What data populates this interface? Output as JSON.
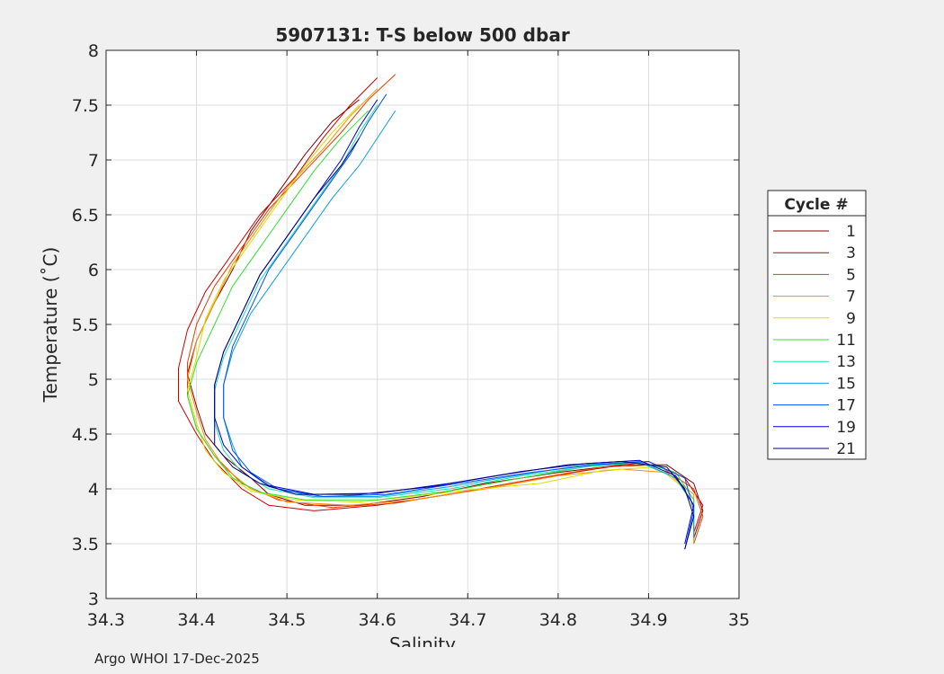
{
  "chart_data": {
    "type": "line",
    "title": "5907131: T-S below 500 dbar",
    "xlabel": "Salinity",
    "ylabel": "Temperature (˚C)",
    "xlim": [
      34.3,
      35.0
    ],
    "ylim": [
      3.0,
      8.0
    ],
    "xticks": [
      "34.3",
      "34.4",
      "34.5",
      "34.6",
      "34.7",
      "34.8",
      "34.9",
      "35"
    ],
    "yticks": [
      "3",
      "3.5",
      "4",
      "4.5",
      "5",
      "5.5",
      "6",
      "6.5",
      "7",
      "7.5",
      "8"
    ],
    "grid": true,
    "legend_title": "Cycle #",
    "legend_position": "right",
    "series": [
      {
        "name": "1",
        "color": "#800000",
        "points": [
          [
            34.58,
            7.55
          ],
          [
            34.55,
            7.35
          ],
          [
            34.52,
            7.05
          ],
          [
            34.49,
            6.7
          ],
          [
            34.46,
            6.35
          ],
          [
            34.44,
            6.0
          ],
          [
            34.42,
            5.7
          ],
          [
            34.4,
            5.35
          ],
          [
            34.39,
            5.05
          ],
          [
            34.4,
            4.75
          ],
          [
            34.41,
            4.5
          ],
          [
            34.43,
            4.3
          ],
          [
            34.46,
            4.1
          ],
          [
            34.48,
            3.95
          ],
          [
            34.52,
            3.85
          ],
          [
            34.58,
            3.85
          ],
          [
            34.65,
            3.93
          ],
          [
            34.72,
            4.05
          ],
          [
            34.8,
            4.15
          ],
          [
            34.87,
            4.22
          ],
          [
            34.92,
            4.22
          ],
          [
            34.95,
            4.05
          ],
          [
            34.96,
            3.8
          ],
          [
            34.95,
            3.55
          ]
        ]
      },
      {
        "name": "3",
        "color": "#cc0000",
        "points": [
          [
            34.6,
            7.75
          ],
          [
            34.57,
            7.5
          ],
          [
            34.54,
            7.2
          ],
          [
            34.51,
            6.85
          ],
          [
            34.47,
            6.5
          ],
          [
            34.44,
            6.15
          ],
          [
            34.41,
            5.8
          ],
          [
            34.39,
            5.45
          ],
          [
            34.38,
            5.1
          ],
          [
            34.38,
            4.8
          ],
          [
            34.4,
            4.5
          ],
          [
            34.42,
            4.25
          ],
          [
            34.45,
            4.0
          ],
          [
            34.48,
            3.85
          ],
          [
            34.53,
            3.8
          ],
          [
            34.6,
            3.85
          ],
          [
            34.68,
            3.95
          ],
          [
            34.76,
            4.07
          ],
          [
            34.84,
            4.18
          ],
          [
            34.9,
            4.25
          ],
          [
            34.94,
            4.1
          ],
          [
            34.96,
            3.85
          ],
          [
            34.95,
            3.6
          ]
        ]
      },
      {
        "name": "5",
        "color": "#e04000",
        "points": [
          [
            34.62,
            7.78
          ],
          [
            34.59,
            7.55
          ],
          [
            34.56,
            7.25
          ],
          [
            34.52,
            6.9
          ],
          [
            34.48,
            6.55
          ],
          [
            34.45,
            6.2
          ],
          [
            34.42,
            5.85
          ],
          [
            34.4,
            5.5
          ],
          [
            34.39,
            5.15
          ],
          [
            34.39,
            4.85
          ],
          [
            34.4,
            4.55
          ],
          [
            34.42,
            4.3
          ],
          [
            34.45,
            4.05
          ],
          [
            34.49,
            3.9
          ],
          [
            34.55,
            3.83
          ],
          [
            34.62,
            3.87
          ],
          [
            34.7,
            3.98
          ],
          [
            34.78,
            4.1
          ],
          [
            34.85,
            4.2
          ],
          [
            34.91,
            4.22
          ],
          [
            34.95,
            4.0
          ],
          [
            34.96,
            3.75
          ],
          [
            34.95,
            3.5
          ]
        ]
      },
      {
        "name": "7",
        "color": "#ff8c00",
        "points": [
          [
            34.6,
            7.65
          ],
          [
            34.57,
            7.4
          ],
          [
            34.54,
            7.1
          ],
          [
            34.5,
            6.75
          ],
          [
            34.47,
            6.4
          ],
          [
            34.44,
            6.05
          ],
          [
            34.42,
            5.7
          ],
          [
            34.4,
            5.35
          ],
          [
            34.39,
            5.0
          ],
          [
            34.4,
            4.7
          ],
          [
            34.41,
            4.45
          ],
          [
            34.43,
            4.2
          ],
          [
            34.46,
            4.0
          ],
          [
            34.5,
            3.88
          ],
          [
            34.57,
            3.85
          ],
          [
            34.64,
            3.9
          ],
          [
            34.72,
            4.0
          ],
          [
            34.8,
            4.12
          ],
          [
            34.87,
            4.18
          ],
          [
            34.92,
            4.15
          ],
          [
            34.95,
            3.95
          ],
          [
            34.95,
            3.7
          ],
          [
            34.95,
            3.5
          ]
        ]
      },
      {
        "name": "9",
        "color": "#d4e000",
        "points": [
          [
            34.58,
            7.5
          ],
          [
            34.55,
            7.25
          ],
          [
            34.52,
            6.95
          ],
          [
            34.49,
            6.6
          ],
          [
            34.46,
            6.25
          ],
          [
            34.43,
            5.9
          ],
          [
            34.41,
            5.55
          ],
          [
            34.4,
            5.2
          ],
          [
            34.39,
            4.9
          ],
          [
            34.4,
            4.6
          ],
          [
            34.41,
            4.35
          ],
          [
            34.43,
            4.15
          ],
          [
            34.46,
            3.98
          ],
          [
            34.51,
            3.9
          ],
          [
            34.58,
            3.88
          ],
          [
            34.66,
            3.95
          ],
          [
            34.7,
            3.99
          ],
          [
            34.78,
            4.05
          ],
          [
            34.85,
            4.17
          ],
          [
            34.91,
            4.2
          ],
          [
            34.94,
            4.0
          ],
          [
            34.95,
            3.75
          ],
          [
            34.95,
            3.55
          ]
        ]
      },
      {
        "name": "11",
        "color": "#30e030",
        "points": [
          [
            34.59,
            7.45
          ],
          [
            34.56,
            7.2
          ],
          [
            34.53,
            6.9
          ],
          [
            34.5,
            6.55
          ],
          [
            34.47,
            6.2
          ],
          [
            34.44,
            5.85
          ],
          [
            34.42,
            5.5
          ],
          [
            34.4,
            5.15
          ],
          [
            34.39,
            4.85
          ],
          [
            34.4,
            4.55
          ],
          [
            34.42,
            4.3
          ],
          [
            34.44,
            4.1
          ],
          [
            34.47,
            3.97
          ],
          [
            34.52,
            3.9
          ],
          [
            34.6,
            3.9
          ],
          [
            34.68,
            3.98
          ],
          [
            34.76,
            4.1
          ],
          [
            34.83,
            4.2
          ],
          [
            34.89,
            4.25
          ],
          [
            34.93,
            4.15
          ],
          [
            34.95,
            3.9
          ],
          [
            34.95,
            3.6
          ]
        ]
      },
      {
        "name": "13",
        "color": "#20e0b0",
        "points": [
          [
            34.6,
            7.5
          ],
          [
            34.58,
            7.25
          ],
          [
            34.56,
            6.95
          ],
          [
            34.53,
            6.6
          ],
          [
            34.5,
            6.25
          ],
          [
            34.47,
            5.9
          ],
          [
            34.45,
            5.55
          ],
          [
            34.43,
            5.2
          ],
          [
            34.42,
            4.9
          ],
          [
            34.42,
            4.6
          ],
          [
            34.43,
            4.35
          ],
          [
            34.45,
            4.15
          ],
          [
            34.48,
            4.0
          ],
          [
            34.53,
            3.92
          ],
          [
            34.6,
            3.92
          ],
          [
            34.68,
            4.0
          ],
          [
            34.76,
            4.12
          ],
          [
            34.83,
            4.2
          ],
          [
            34.89,
            4.24
          ],
          [
            34.93,
            4.1
          ],
          [
            34.95,
            3.85
          ],
          [
            34.95,
            3.6
          ]
        ]
      },
      {
        "name": "15",
        "color": "#10a0e0",
        "points": [
          [
            34.62,
            7.45
          ],
          [
            34.6,
            7.2
          ],
          [
            34.58,
            6.95
          ],
          [
            34.55,
            6.65
          ],
          [
            34.52,
            6.3
          ],
          [
            34.49,
            5.95
          ],
          [
            34.46,
            5.6
          ],
          [
            34.44,
            5.25
          ],
          [
            34.43,
            4.95
          ],
          [
            34.43,
            4.65
          ],
          [
            34.44,
            4.4
          ],
          [
            34.45,
            4.2
          ],
          [
            34.48,
            4.02
          ],
          [
            34.53,
            3.93
          ],
          [
            34.6,
            3.93
          ],
          [
            34.68,
            4.02
          ],
          [
            34.76,
            4.13
          ],
          [
            34.83,
            4.22
          ],
          [
            34.89,
            4.25
          ],
          [
            34.93,
            4.1
          ],
          [
            34.95,
            3.85
          ],
          [
            34.95,
            3.55
          ]
        ]
      },
      {
        "name": "17",
        "color": "#0050f0",
        "points": [
          [
            34.61,
            7.6
          ],
          [
            34.59,
            7.35
          ],
          [
            34.57,
            7.05
          ],
          [
            34.54,
            6.7
          ],
          [
            34.51,
            6.35
          ],
          [
            34.48,
            6.0
          ],
          [
            34.46,
            5.65
          ],
          [
            34.44,
            5.3
          ],
          [
            34.43,
            4.95
          ],
          [
            34.43,
            4.65
          ],
          [
            34.44,
            4.35
          ],
          [
            34.46,
            4.15
          ],
          [
            34.49,
            4.0
          ],
          [
            34.54,
            3.93
          ],
          [
            34.61,
            3.95
          ],
          [
            34.69,
            4.05
          ],
          [
            34.77,
            4.15
          ],
          [
            34.84,
            4.22
          ],
          [
            34.9,
            4.25
          ],
          [
            34.94,
            4.1
          ],
          [
            34.95,
            3.8
          ],
          [
            34.94,
            3.45
          ]
        ]
      },
      {
        "name": "19",
        "color": "#0000d0",
        "points": [
          [
            34.6,
            7.55
          ],
          [
            34.58,
            7.3
          ],
          [
            34.56,
            7.0
          ],
          [
            34.53,
            6.65
          ],
          [
            34.5,
            6.3
          ],
          [
            34.47,
            5.95
          ],
          [
            34.45,
            5.6
          ],
          [
            34.43,
            5.25
          ],
          [
            34.42,
            4.95
          ],
          [
            34.42,
            4.65
          ],
          [
            34.43,
            4.4
          ],
          [
            34.45,
            4.2
          ],
          [
            34.48,
            4.03
          ],
          [
            34.53,
            3.95
          ],
          [
            34.6,
            3.96
          ],
          [
            34.68,
            4.05
          ],
          [
            34.76,
            4.16
          ],
          [
            34.83,
            4.23
          ],
          [
            34.89,
            4.26
          ],
          [
            34.93,
            4.12
          ],
          [
            34.95,
            3.85
          ],
          [
            34.94,
            3.5
          ]
        ]
      },
      {
        "name": "21",
        "color": "#000080",
        "points": [
          [
            34.58,
            7.2
          ],
          [
            34.56,
            6.95
          ],
          [
            34.53,
            6.65
          ],
          [
            34.5,
            6.3
          ],
          [
            34.47,
            5.95
          ],
          [
            34.45,
            5.6
          ],
          [
            34.43,
            5.25
          ],
          [
            34.42,
            4.95
          ],
          [
            34.42,
            4.65
          ],
          [
            34.42,
            4.4
          ],
          [
            34.44,
            4.2
          ],
          [
            34.47,
            4.05
          ],
          [
            34.51,
            3.95
          ],
          [
            34.58,
            3.95
          ],
          [
            34.66,
            4.02
          ],
          [
            34.74,
            4.13
          ],
          [
            34.81,
            4.22
          ],
          [
            34.87,
            4.25
          ],
          [
            34.92,
            4.2
          ],
          [
            34.94,
            4.0
          ],
          [
            34.95,
            3.75
          ],
          [
            34.94,
            3.45
          ]
        ]
      }
    ]
  },
  "footer": "Argo WHOI 17-Dec-2025"
}
